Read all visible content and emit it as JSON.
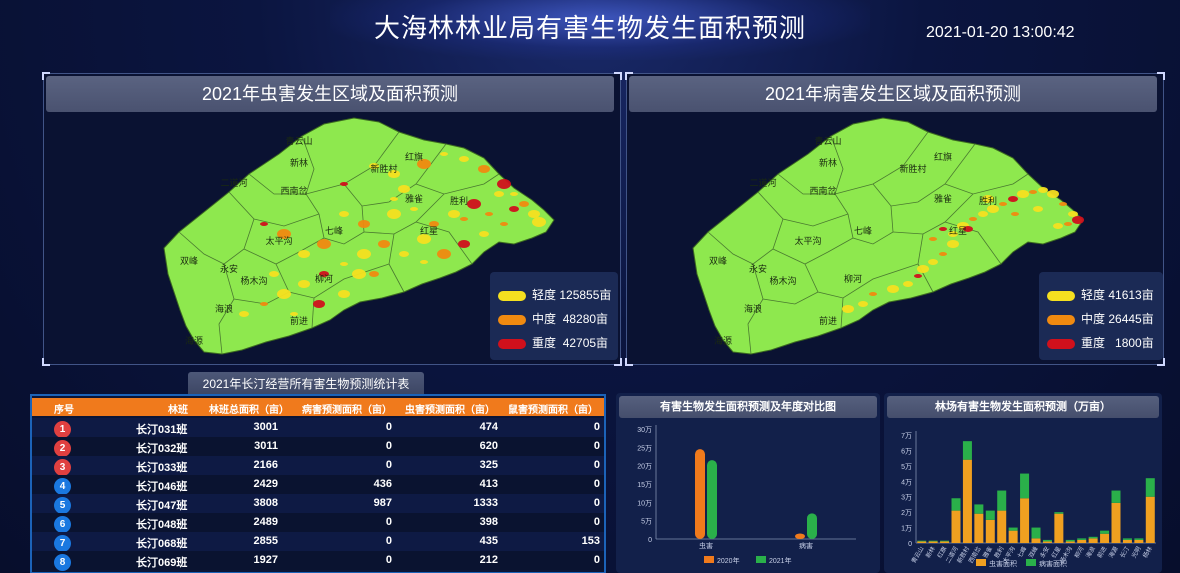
{
  "header": {
    "title": "大海林林业局有害生物发生面积预测",
    "datetime": "2021-01-20 13:00:42"
  },
  "insect_map": {
    "title": "2021年虫害发生区域及面积预测",
    "regions": [
      "青云山",
      "新林",
      "红旗",
      "二道河",
      "新胜村",
      "西南岔",
      "雅雀",
      "胜利",
      "太平沟",
      "七峰",
      "双峰",
      "永安",
      "红星",
      "杨木沟",
      "柳河",
      "海浪",
      "前进",
      "海源"
    ],
    "legend": [
      {
        "level": "轻度",
        "value": "125855亩",
        "color": "#f5e020"
      },
      {
        "level": "中度",
        "value": "48280亩",
        "color": "#f08a10"
      },
      {
        "level": "重度",
        "value": "42705亩",
        "color": "#d0101c"
      }
    ]
  },
  "disease_map": {
    "title": "2021年病害发生区域及面积预测",
    "regions": [
      "青云山",
      "新林",
      "红旗",
      "二道河",
      "新胜村",
      "西南岔",
      "雅雀",
      "胜利",
      "太平沟",
      "七峰",
      "双峰",
      "永安",
      "红星",
      "杨木沟",
      "柳河",
      "海浪",
      "前进",
      "海源"
    ],
    "legend": [
      {
        "level": "轻度",
        "value": "41613亩",
        "color": "#f5e020"
      },
      {
        "level": "中度",
        "value": "26445亩",
        "color": "#f08a10"
      },
      {
        "level": "重度",
        "value": "1800亩",
        "color": "#d0101c"
      }
    ]
  },
  "stats_table": {
    "title": "2021年长汀经营所有害生物预测统计表",
    "columns": [
      "序号",
      "林班",
      "林班总面积（亩）",
      "病害预测面积（亩）",
      "虫害预测面积（亩）",
      "鼠害预测面积（亩）"
    ],
    "rows": [
      {
        "no": "1",
        "name": "长汀031班",
        "total": "3001",
        "disease": "0",
        "insect": "474",
        "rodent": "0",
        "badge": "#e04040"
      },
      {
        "no": "2",
        "name": "长汀032班",
        "total": "3011",
        "disease": "0",
        "insect": "620",
        "rodent": "0",
        "badge": "#e04040"
      },
      {
        "no": "3",
        "name": "长汀033班",
        "total": "2166",
        "disease": "0",
        "insect": "325",
        "rodent": "0",
        "badge": "#e04040"
      },
      {
        "no": "4",
        "name": "长汀046班",
        "total": "2429",
        "disease": "436",
        "insect": "413",
        "rodent": "0",
        "badge": "#1a78e0"
      },
      {
        "no": "5",
        "name": "长汀047班",
        "total": "3808",
        "disease": "987",
        "insect": "1333",
        "rodent": "0",
        "badge": "#1a78e0"
      },
      {
        "no": "6",
        "name": "长汀048班",
        "total": "2489",
        "disease": "0",
        "insect": "398",
        "rodent": "0",
        "badge": "#1a78e0"
      },
      {
        "no": "7",
        "name": "长汀068班",
        "total": "2855",
        "disease": "0",
        "insect": "435",
        "rodent": "153",
        "badge": "#1a78e0"
      },
      {
        "no": "8",
        "name": "长汀069班",
        "total": "1927",
        "disease": "0",
        "insect": "212",
        "rodent": "0",
        "badge": "#1a78e0"
      }
    ]
  },
  "chart_data": [
    {
      "type": "bar",
      "title": "有害生物发生面积预测及年度对比图",
      "categories": [
        "虫害",
        "病害"
      ],
      "series": [
        {
          "name": "2020年",
          "values": [
            245000,
            15000
          ],
          "color": "#f07a1c"
        },
        {
          "name": "2021年",
          "values": [
            215000,
            70000
          ],
          "color": "#2ab04a"
        }
      ],
      "yticks": [
        "0",
        "5万",
        "10万",
        "15万",
        "20万",
        "25万",
        "30万"
      ],
      "ylim": [
        0,
        300000
      ],
      "legend_position": "bottom"
    },
    {
      "type": "bar",
      "stacked": true,
      "title": "林场有害生物发生面积预测（万亩）",
      "categories": [
        "青云山",
        "新林",
        "红旗",
        "二道河",
        "新胜村",
        "西南岔",
        "雅雀",
        "胜利",
        "太平沟",
        "七峰",
        "双峰",
        "永安",
        "红星",
        "杨木沟",
        "柳河",
        "海浪",
        "前进",
        "海源",
        "长汀",
        "光明",
        "杨林"
      ],
      "series": [
        {
          "name": "虫害面积",
          "values": [
            0.1,
            0.1,
            0.1,
            2.1,
            5.4,
            1.9,
            1.5,
            2.1,
            0.8,
            2.9,
            0.3,
            0.1,
            1.9,
            0.1,
            0.2,
            0.3,
            0.6,
            2.6,
            0.2,
            0.2,
            3.0
          ],
          "color": "#f0a020"
        },
        {
          "name": "病害面积",
          "values": [
            0.05,
            0.05,
            0.05,
            0.8,
            1.2,
            0.6,
            0.6,
            1.3,
            0.2,
            1.6,
            0.7,
            0.1,
            0.1,
            0.1,
            0.1,
            0.1,
            0.2,
            0.8,
            0.1,
            0.1,
            1.2
          ],
          "color": "#2ab04a"
        }
      ],
      "yticks": [
        "0",
        "1万",
        "2万",
        "3万",
        "4万",
        "5万",
        "6万",
        "7万"
      ],
      "ylim": [
        0,
        7
      ],
      "legend_position": "bottom"
    }
  ]
}
